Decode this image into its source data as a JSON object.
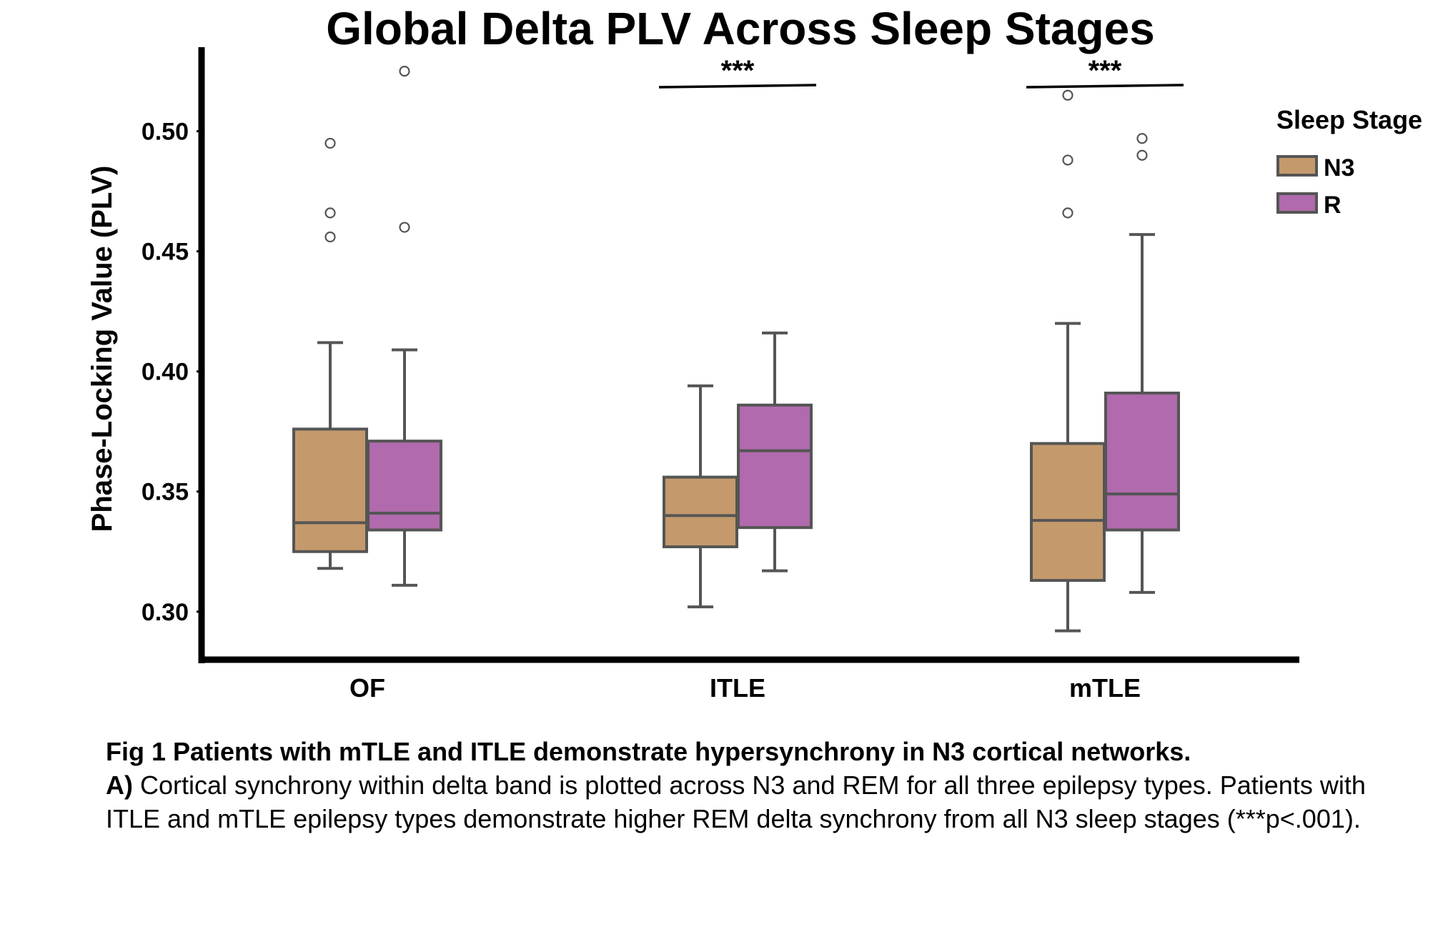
{
  "chart_data": {
    "type": "box",
    "title": "Global Delta PLV Across Sleep Stages",
    "xlabel": "",
    "ylabel": "Phase-Locking Value (PLV)",
    "ylim": [
      0.28,
      0.535
    ],
    "yticks": [
      0.3,
      0.35,
      0.4,
      0.45,
      0.5
    ],
    "ytick_labels": [
      "0.30",
      "0.35",
      "0.40",
      "0.45",
      "0.50"
    ],
    "categories": [
      "OF",
      "ITLE",
      "mTLE"
    ],
    "legend": {
      "title": "Sleep Stage",
      "position": "right"
    },
    "series": [
      {
        "name": "N3",
        "color": "#c49a6c",
        "boxes": [
          {
            "whisker_low": 0.318,
            "q1": 0.325,
            "median": 0.337,
            "q3": 0.376,
            "whisker_high": 0.412,
            "outliers": [
              0.456,
              0.466,
              0.495
            ]
          },
          {
            "whisker_low": 0.302,
            "q1": 0.327,
            "median": 0.34,
            "q3": 0.356,
            "whisker_high": 0.394,
            "outliers": []
          },
          {
            "whisker_low": 0.292,
            "q1": 0.313,
            "median": 0.338,
            "q3": 0.37,
            "whisker_high": 0.42,
            "outliers": [
              0.466,
              0.488,
              0.515
            ]
          }
        ]
      },
      {
        "name": "R",
        "color": "#b06aad",
        "boxes": [
          {
            "whisker_low": 0.311,
            "q1": 0.334,
            "median": 0.341,
            "q3": 0.371,
            "whisker_high": 0.409,
            "outliers": [
              0.46,
              0.525
            ]
          },
          {
            "whisker_low": 0.317,
            "q1": 0.335,
            "median": 0.367,
            "q3": 0.386,
            "whisker_high": 0.416,
            "outliers": []
          },
          {
            "whisker_low": 0.308,
            "q1": 0.334,
            "median": 0.349,
            "q3": 0.391,
            "whisker_high": 0.457,
            "outliers": [
              0.49,
              0.497
            ]
          }
        ]
      }
    ],
    "annotations": [
      {
        "category": "ITLE",
        "text": "***"
      },
      {
        "category": "mTLE",
        "text": "***"
      }
    ],
    "box_edge_color": "#555555"
  },
  "caption": {
    "title_bold": "Fig 1 Patients with mTLE  and ITLE demonstrate hypersynchrony in N3 cortical networks.",
    "panel_label": "A)",
    "body": " Cortical synchrony within delta band is plotted across N3 and REM for all three epilepsy types. Patients with ITLE and mTLE epilepsy types demonstrate higher REM delta synchrony from all N3 sleep stages (***p<.001)."
  }
}
